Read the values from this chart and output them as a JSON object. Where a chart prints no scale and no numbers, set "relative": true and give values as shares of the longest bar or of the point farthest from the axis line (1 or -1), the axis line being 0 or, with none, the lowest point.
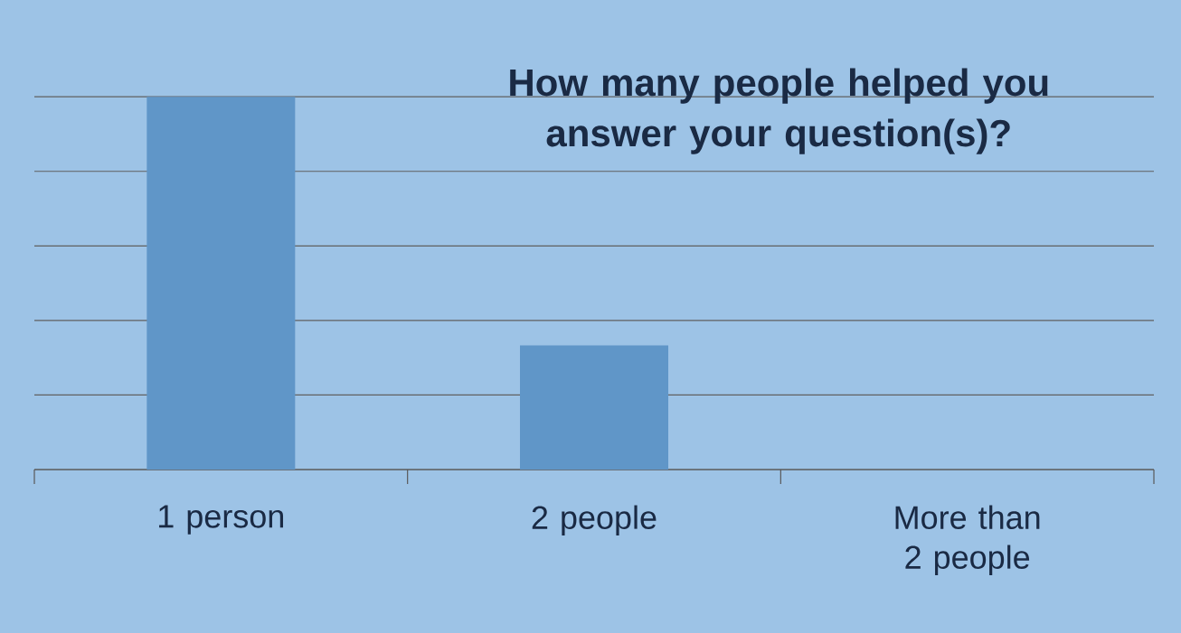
{
  "chart_data": {
    "type": "bar",
    "title": "How many people helped you answer your question(s)?",
    "categories": [
      "1 person",
      "2 people",
      "More than 2 people"
    ],
    "values": [
      1,
      0.333,
      0
    ],
    "color": "#6096c8",
    "relative": true,
    "grid": "y"
  }
}
